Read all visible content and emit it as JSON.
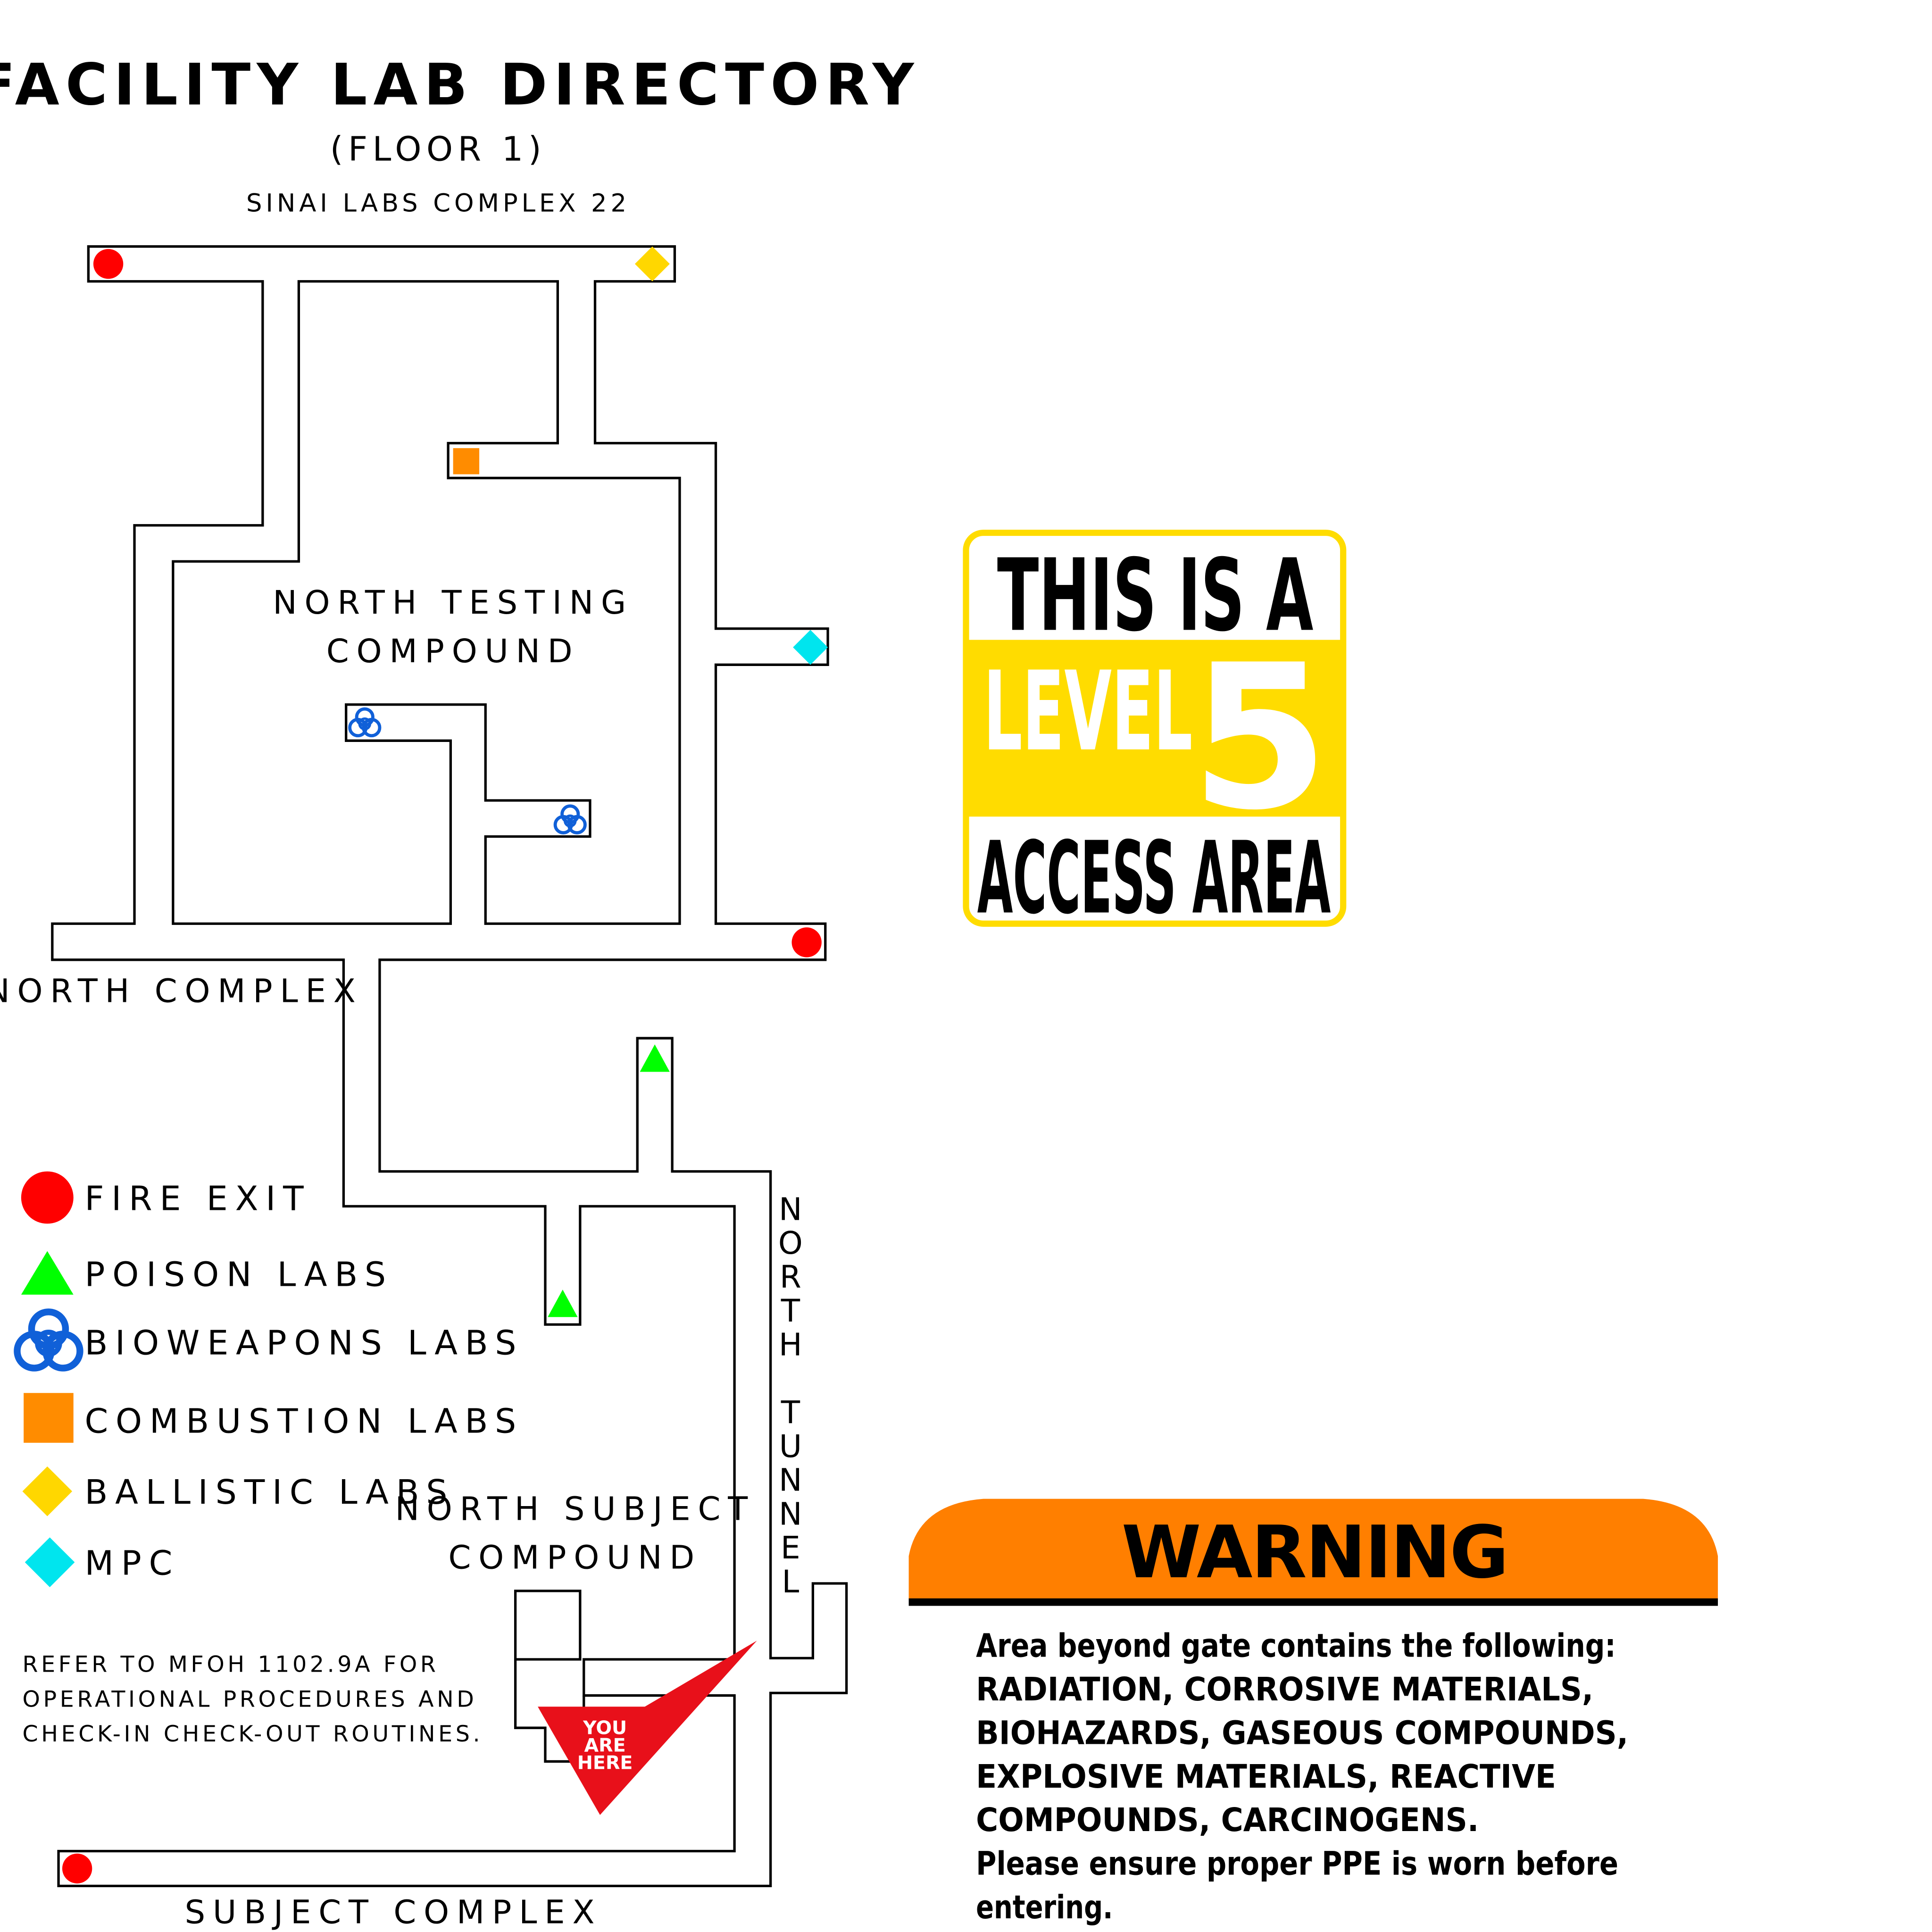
{
  "header": {
    "title": "FACILITY LAB DIRECTORY",
    "floor": "(FLOOR 1)",
    "complex": "SINAI LABS COMPLEX 22"
  },
  "map": {
    "areas": {
      "north_testing_line1": "NORTH TESTING",
      "north_testing_line2": "COMPOUND",
      "north_complex": "NORTH COMPLEX",
      "north_subject_line1": "NORTH SUBJECT",
      "north_subject_line2": "COMPOUND",
      "subject_complex": "SUBJECT COMPLEX",
      "north_tunnel_word1": "NORTH",
      "north_tunnel_word2": "TUNNEL"
    },
    "you_are_here": [
      "YOU",
      "ARE",
      "HERE"
    ]
  },
  "legend": {
    "items": [
      {
        "label": "FIRE EXIT",
        "icon": "fire-exit-icon",
        "color": "#ff0000"
      },
      {
        "label": "POISON LABS",
        "icon": "poison-labs-icon",
        "color": "#00ff00"
      },
      {
        "label": "BIOWEAPONS LABS",
        "icon": "biohazard-icon",
        "color": "#1060d8"
      },
      {
        "label": "COMBUSTION LABS",
        "icon": "combustion-labs-icon",
        "color": "#ff8c00"
      },
      {
        "label": "BALLISTIC LABS",
        "icon": "ballistic-labs-icon",
        "color": "#ffd700"
      },
      {
        "label": "MPC",
        "icon": "mpc-icon",
        "color": "#00e5ee"
      }
    ],
    "note_lines": [
      "REFER TO MFOH 1102.9A FOR",
      "OPERATIONAL PROCEDURES AND",
      "CHECK-IN CHECK-OUT ROUTINES."
    ]
  },
  "level_sign": {
    "top": "THIS IS A",
    "level_word": "LEVEL",
    "level_number": "5",
    "bottom": "ACCESS AREA",
    "accent_color": "#ffdc00"
  },
  "warning": {
    "title": "WARNING",
    "accent_color": "#ff7f00",
    "lines": [
      "Area beyond gate contains the following:",
      "RADIATION, CORROSIVE MATERIALS,",
      "BIOHAZARDS, GASEOUS COMPOUNDS,",
      "EXPLOSIVE MATERIALS, REACTIVE",
      "COMPOUNDS, CARCINOGENS.",
      "Please ensure proper PPE is worn before",
      "entering."
    ]
  }
}
